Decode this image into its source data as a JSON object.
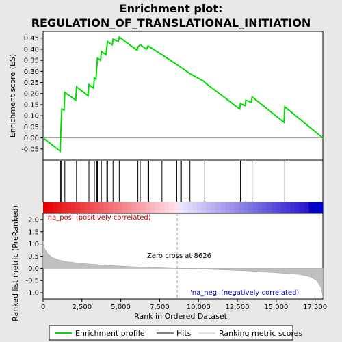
{
  "title_line1": "Enrichment plot:",
  "title_line2": "REGULATION_OF_TRANSLATIONAL_INITIATION",
  "colors": {
    "enrichment_line": "#00dd00",
    "hits": "#000000",
    "ranking_fill": "#c0c0c0",
    "zero_line": "#999999",
    "pos_label": "#cc0000",
    "neg_label": "#0000cc"
  },
  "chart_data": [
    {
      "type": "line",
      "name": "enrichment-profile",
      "ylabel": "Enrichment score (ES)",
      "xlim": [
        0,
        18000
      ],
      "ylim": [
        -0.1,
        0.48
      ],
      "yticks": [
        "-0.05",
        "0.00",
        "0.05",
        "0.10",
        "0.15",
        "0.20",
        "0.25",
        "0.30",
        "0.35",
        "0.40",
        "0.45"
      ],
      "grid": false,
      "points": [
        [
          0,
          0.0
        ],
        [
          1100,
          -0.06
        ],
        [
          1150,
          0.04
        ],
        [
          1200,
          0.13
        ],
        [
          1350,
          0.125
        ],
        [
          1400,
          0.205
        ],
        [
          2100,
          0.17
        ],
        [
          2150,
          0.23
        ],
        [
          2900,
          0.19
        ],
        [
          2950,
          0.24
        ],
        [
          3250,
          0.225
        ],
        [
          3300,
          0.27
        ],
        [
          3400,
          0.265
        ],
        [
          3450,
          0.315
        ],
        [
          3500,
          0.36
        ],
        [
          3700,
          0.35
        ],
        [
          3750,
          0.39
        ],
        [
          4050,
          0.375
        ],
        [
          4100,
          0.41
        ],
        [
          4150,
          0.435
        ],
        [
          4450,
          0.42
        ],
        [
          4500,
          0.445
        ],
        [
          4850,
          0.435
        ],
        [
          4900,
          0.455
        ],
        [
          6050,
          0.395
        ],
        [
          6100,
          0.41
        ],
        [
          6250,
          0.42
        ],
        [
          6650,
          0.4
        ],
        [
          6750,
          0.415
        ],
        [
          7650,
          0.375
        ],
        [
          8626,
          0.33
        ],
        [
          9450,
          0.29
        ],
        [
          10350,
          0.255
        ],
        [
          10400,
          0.25
        ],
        [
          12650,
          0.13
        ],
        [
          12700,
          0.155
        ],
        [
          13000,
          0.145
        ],
        [
          13050,
          0.17
        ],
        [
          13400,
          0.16
        ],
        [
          13450,
          0.185
        ],
        [
          15500,
          0.07
        ],
        [
          15550,
          0.14
        ],
        [
          18000,
          0.0
        ]
      ],
      "hits": [
        1100,
        1150,
        1200,
        1400,
        2150,
        2950,
        3300,
        3450,
        3500,
        3750,
        4100,
        4150,
        4500,
        4900,
        6100,
        6250,
        6750,
        6800,
        7650,
        8600,
        8850,
        8900,
        9450,
        10400,
        12700,
        13050,
        13450,
        15550
      ]
    },
    {
      "type": "area",
      "name": "ranked-list-metric",
      "xlabel": "Rank in Ordered Dataset",
      "ylabel": "Ranked list metric (PreRanked)",
      "xlim": [
        0,
        18000
      ],
      "ylim": [
        -1.25,
        2.25
      ],
      "xticks": [
        "0",
        "2,500",
        "5,000",
        "7,500",
        "10,000",
        "12,500",
        "15,000",
        "17,500"
      ],
      "yticks": [
        "-1.0",
        "-0.5",
        "0.0",
        "0.5",
        "1.0",
        "1.5",
        "2.0"
      ],
      "points": [
        [
          0,
          1.1
        ],
        [
          100,
          0.8
        ],
        [
          300,
          0.6
        ],
        [
          600,
          0.45
        ],
        [
          1000,
          0.35
        ],
        [
          1500,
          0.28
        ],
        [
          2500,
          0.2
        ],
        [
          4000,
          0.13
        ],
        [
          6000,
          0.06
        ],
        [
          8626,
          0.0
        ],
        [
          11000,
          -0.05
        ],
        [
          13000,
          -0.1
        ],
        [
          15000,
          -0.18
        ],
        [
          16500,
          -0.25
        ],
        [
          17200,
          -0.35
        ],
        [
          17600,
          -0.5
        ],
        [
          17900,
          -0.8
        ],
        [
          18000,
          -1.2
        ]
      ],
      "zero_cross_label": "Zero cross at 8626",
      "pos_label": "'na_pos' (positively correlated)",
      "neg_label": "'na_neg' (negatively correlated)"
    }
  ],
  "legend": {
    "items": [
      {
        "label": "Enrichment profile"
      },
      {
        "label": "Hits"
      },
      {
        "label": "Ranking metric scores"
      }
    ]
  }
}
